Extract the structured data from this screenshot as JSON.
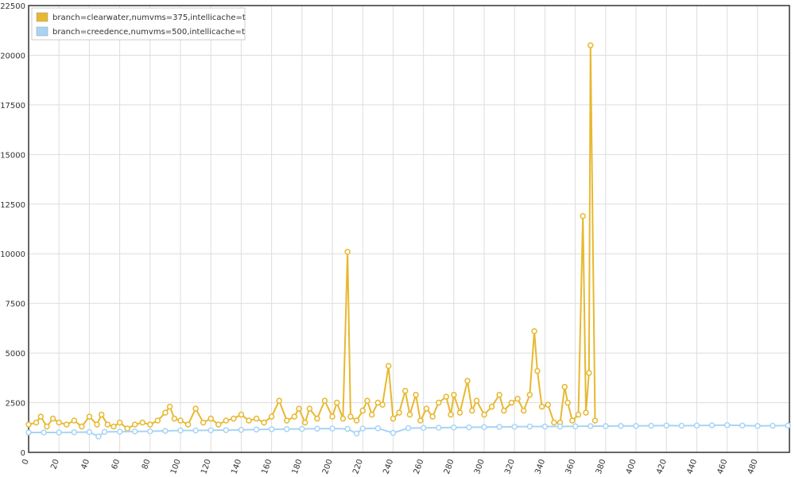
{
  "chart_data": {
    "type": "line",
    "xlim": [
      0,
      501
    ],
    "xticks": [
      0,
      20,
      40,
      60,
      80,
      100,
      120,
      140,
      160,
      180,
      200,
      220,
      240,
      260,
      280,
      300,
      320,
      340,
      360,
      380,
      400,
      420,
      440,
      460,
      480
    ],
    "ylim": [
      0,
      22500
    ],
    "yticks": [
      0,
      2500,
      5000,
      7500,
      10000,
      12500,
      15000,
      17500,
      20000,
      22500
    ],
    "grid": true,
    "legend": "top-left",
    "series": [
      {
        "name": "branch=clearwater,numvms=375,intellicache=t",
        "color": "#e8b830",
        "x": [
          0,
          5,
          8,
          12,
          16,
          20,
          25,
          30,
          35,
          40,
          45,
          48,
          52,
          56,
          60,
          65,
          70,
          75,
          80,
          85,
          90,
          93,
          96,
          100,
          105,
          110,
          115,
          120,
          125,
          130,
          135,
          140,
          145,
          150,
          155,
          160,
          165,
          170,
          175,
          178,
          182,
          185,
          190,
          195,
          200,
          203,
          207,
          210,
          212,
          216,
          220,
          223,
          226,
          230,
          233,
          237,
          240,
          244,
          248,
          251,
          255,
          258,
          262,
          266,
          270,
          275,
          278,
          280,
          284,
          289,
          292,
          295,
          300,
          305,
          310,
          313,
          318,
          322,
          326,
          330,
          333,
          335,
          338,
          342,
          346,
          350,
          353,
          355,
          358,
          362,
          365,
          367,
          369,
          370,
          373
        ],
        "values": [
          1400,
          1500,
          1800,
          1300,
          1700,
          1500,
          1400,
          1600,
          1300,
          1800,
          1400,
          1900,
          1400,
          1300,
          1500,
          1200,
          1400,
          1500,
          1400,
          1600,
          2000,
          2300,
          1700,
          1600,
          1400,
          2200,
          1500,
          1700,
          1400,
          1600,
          1700,
          1900,
          1600,
          1700,
          1500,
          1800,
          2600,
          1600,
          1800,
          2200,
          1500,
          2200,
          1700,
          2600,
          1800,
          2500,
          1700,
          10100,
          1800,
          1600,
          2100,
          2600,
          1900,
          2500,
          2400,
          4350,
          1700,
          2000,
          3100,
          1900,
          2900,
          1600,
          2200,
          1800,
          2500,
          2800,
          1900,
          2900,
          2000,
          3600,
          2100,
          2600,
          1900,
          2300,
          2900,
          2100,
          2500,
          2700,
          2100,
          2900,
          6100,
          4100,
          2300,
          2400,
          1500,
          1500,
          3300,
          2500,
          1600,
          1900,
          11900,
          2000,
          4000,
          20500,
          1600
        ]
      },
      {
        "name": "branch=creedence,numvms=500,intellicache=t",
        "color": "#a8d4f4",
        "x": [
          0,
          10,
          20,
          30,
          40,
          46,
          50,
          60,
          70,
          80,
          90,
          100,
          110,
          120,
          130,
          140,
          150,
          160,
          170,
          180,
          190,
          200,
          210,
          216,
          220,
          230,
          240,
          250,
          260,
          270,
          280,
          290,
          300,
          310,
          320,
          330,
          340,
          350,
          360,
          370,
          380,
          390,
          400,
          410,
          420,
          430,
          440,
          450,
          460,
          470,
          480,
          490,
          500
        ],
        "values": [
          1000,
          1000,
          1000,
          1010,
          1020,
          800,
          1030,
          1040,
          1050,
          1060,
          1080,
          1100,
          1100,
          1110,
          1120,
          1130,
          1150,
          1160,
          1170,
          1180,
          1190,
          1200,
          1180,
          950,
          1200,
          1210,
          980,
          1220,
          1230,
          1240,
          1250,
          1260,
          1270,
          1280,
          1290,
          1300,
          1300,
          1300,
          1310,
          1320,
          1320,
          1330,
          1330,
          1340,
          1350,
          1340,
          1350,
          1360,
          1370,
          1350,
          1330,
          1340,
          1350
        ]
      }
    ]
  }
}
